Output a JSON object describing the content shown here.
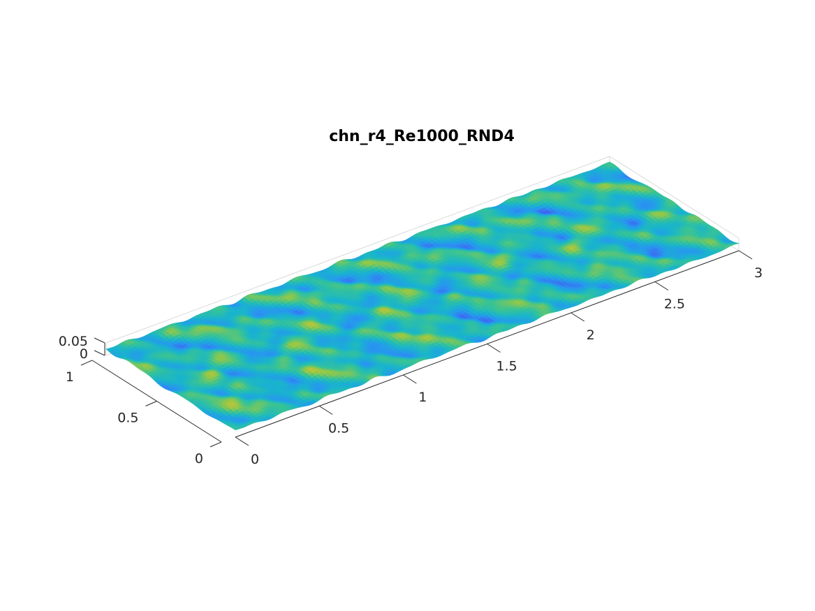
{
  "chart_data": {
    "type": "surface",
    "title": "chn_r4_Re1000_RND4",
    "xlabel": "",
    "ylabel": "",
    "zlabel": "",
    "xlim": [
      0,
      3
    ],
    "ylim": [
      0,
      1
    ],
    "zlim": [
      0,
      0.05
    ],
    "x_ticks": [
      "0",
      "0.5",
      "1",
      "1.5",
      "2",
      "2.5",
      "3"
    ],
    "y_ticks": [
      "0",
      "0.5",
      "1"
    ],
    "z_ticks": [
      "0",
      "0.05"
    ],
    "surface": "random rough wall height field over x in [0, 3], y in [0, 1]",
    "colormap": "parula",
    "colors": {
      "low": "#3a5cf0",
      "mid": "#1fb5c4",
      "high": "#e6d43a",
      "axis": "#262626",
      "box": "#d9d9d9"
    },
    "grid": false,
    "legend": "none"
  }
}
